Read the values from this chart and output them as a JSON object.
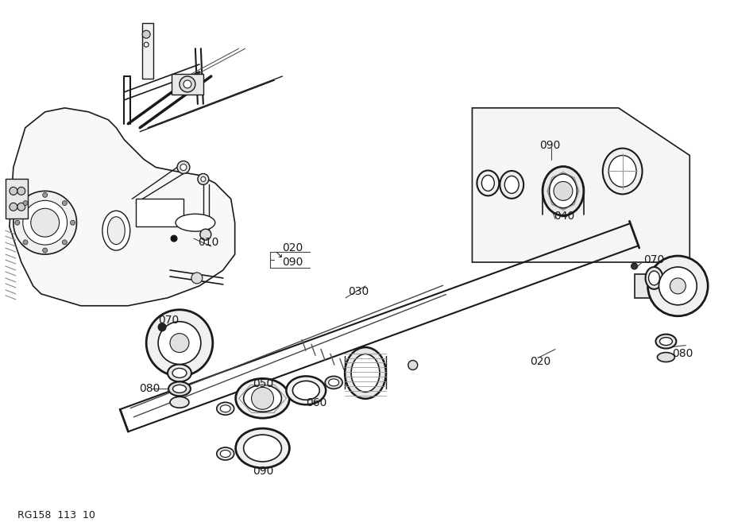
{
  "figure_width": 9.19,
  "figure_height": 6.67,
  "dpi": 100,
  "bg_color": "#ffffff",
  "footer_text": "RG158  113  10",
  "lc": "#1a1a1a",
  "lc_thin": "#333333",
  "lc_med": "#222222",
  "text_color": "#1a1a1a",
  "text_fontsize": 10,
  "footer_fontsize": 9
}
